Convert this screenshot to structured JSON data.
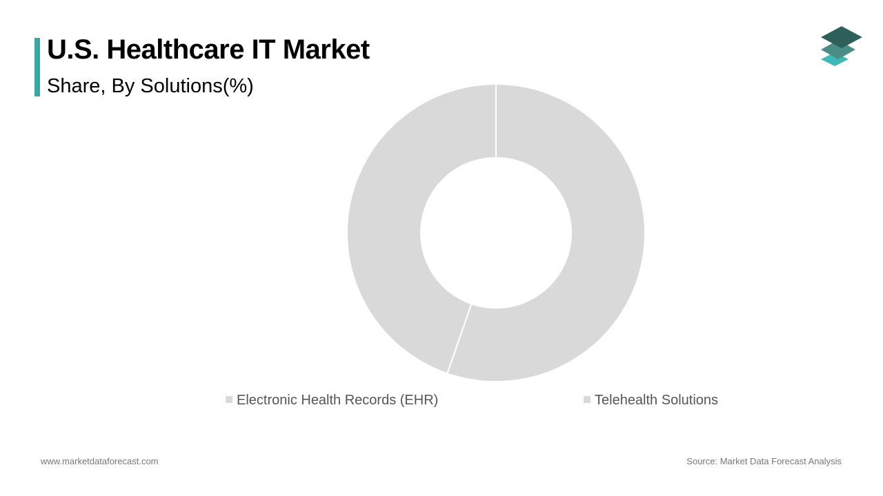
{
  "header": {
    "title": "U.S. Healthcare IT Market",
    "subtitle": "Share, By Solutions(%)",
    "accent_color": "#3aa6a6"
  },
  "logo": {
    "icon": "layered-diamond-logo-icon",
    "colors": [
      "#2f5f5a",
      "#4c8c86",
      "#3fb8b8"
    ]
  },
  "chart_data": {
    "type": "pie",
    "donut": true,
    "series": [
      {
        "name": "Electronic Health Records (EHR)",
        "value": 55.3,
        "color": "#d9d9d9"
      },
      {
        "name": "Telehealth Solutions",
        "value": 44.7,
        "color": "#d9d9d9"
      }
    ],
    "legend_placement": "bottom",
    "legend_color": "#d9d9d9"
  },
  "footer": {
    "website": "www.marketdataforecast.com",
    "source": "Source: Market Data Forecast Analysis"
  }
}
